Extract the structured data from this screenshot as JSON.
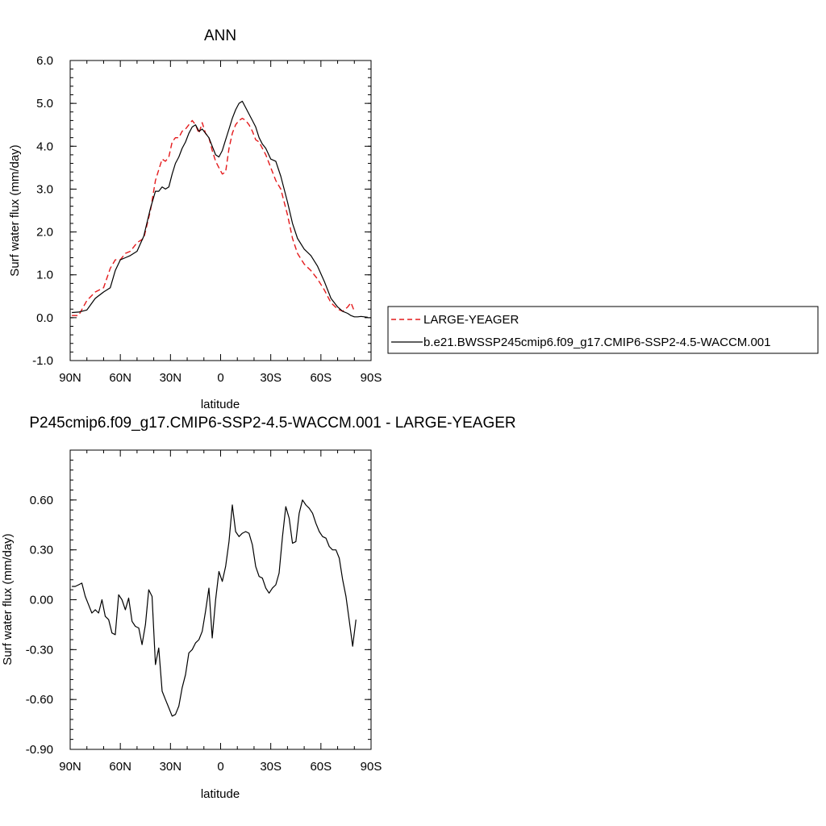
{
  "chart_data": [
    {
      "type": "line",
      "title": "ANN",
      "xlabel": "latitude",
      "ylabel": "Surf water flux (mm/day)",
      "xlim": [
        90,
        -90
      ],
      "ylim": [
        -1.0,
        6.0
      ],
      "x_tick_values": [
        90,
        60,
        30,
        0,
        -30,
        -60,
        -90
      ],
      "x_tick_labels": [
        "90N",
        "60N",
        "30N",
        "0",
        "30S",
        "60S",
        "90S"
      ],
      "y_tick_values": [
        -1.0,
        0.0,
        1.0,
        2.0,
        3.0,
        4.0,
        5.0,
        6.0
      ],
      "y_tick_labels": [
        "-1.0",
        "0.0",
        "1.0",
        "2.0",
        "3.0",
        "4.0",
        "5.0",
        "6.0"
      ],
      "legend_placement": "right, outside plot",
      "series": [
        {
          "name": "LARGE-YEAGER",
          "color": "#e41a1c",
          "dash": true,
          "x": [
            89,
            85,
            80,
            75,
            70,
            66,
            63,
            60,
            57,
            54,
            50,
            46,
            42,
            39,
            37,
            35,
            33,
            31,
            29,
            27,
            25,
            23,
            21,
            19,
            17,
            15,
            13,
            11,
            9,
            7,
            5,
            3,
            1,
            -1,
            -3,
            -5,
            -7,
            -9,
            -11,
            -13,
            -15,
            -17,
            -19,
            -21,
            -23,
            -25,
            -27,
            -30,
            -33,
            -36,
            -40,
            -43,
            -46,
            -50,
            -54,
            -58,
            -62,
            -66,
            -70,
            -73,
            -76,
            -78,
            -80
          ],
          "y": [
            0.05,
            0.05,
            0.4,
            0.6,
            0.7,
            1.15,
            1.35,
            1.35,
            1.5,
            1.55,
            1.75,
            1.85,
            2.5,
            3.2,
            3.45,
            3.7,
            3.65,
            3.75,
            4.1,
            4.2,
            4.2,
            4.35,
            4.4,
            4.5,
            4.6,
            4.5,
            4.3,
            4.55,
            4.3,
            4.2,
            3.9,
            3.65,
            3.5,
            3.35,
            3.4,
            3.95,
            4.3,
            4.5,
            4.6,
            4.65,
            4.6,
            4.5,
            4.35,
            4.15,
            4.1,
            3.95,
            3.8,
            3.5,
            3.2,
            3.0,
            2.4,
            1.85,
            1.5,
            1.25,
            1.1,
            0.9,
            0.65,
            0.35,
            0.2,
            0.15,
            0.25,
            0.35,
            0.15
          ]
        },
        {
          "name": "b.e21.BWSSP245cmip6.f09_g17.CMIP6-SSP2-4.5-WACCM.001",
          "color": "#000000",
          "dash": false,
          "x": [
            89,
            85,
            80,
            75,
            70,
            66,
            63,
            60,
            57,
            54,
            50,
            46,
            42,
            39,
            37,
            35,
            33,
            31,
            29,
            27,
            25,
            23,
            21,
            19,
            17,
            15,
            13,
            11,
            9,
            7,
            5,
            3,
            1,
            -1,
            -3,
            -5,
            -7,
            -9,
            -11,
            -13,
            -15,
            -17,
            -19,
            -21,
            -23,
            -25,
            -27,
            -30,
            -33,
            -36,
            -40,
            -43,
            -46,
            -50,
            -54,
            -58,
            -62,
            -66,
            -70,
            -73,
            -76,
            -78,
            -80,
            -82,
            -84,
            -86,
            -88
          ],
          "y": [
            0.12,
            0.13,
            0.18,
            0.45,
            0.6,
            0.7,
            1.1,
            1.35,
            1.4,
            1.45,
            1.55,
            1.9,
            2.55,
            2.95,
            2.95,
            3.05,
            3.0,
            3.05,
            3.35,
            3.6,
            3.75,
            3.95,
            4.1,
            4.3,
            4.45,
            4.5,
            4.35,
            4.4,
            4.3,
            4.2,
            4.0,
            3.8,
            3.75,
            3.9,
            4.15,
            4.4,
            4.65,
            4.85,
            5.0,
            5.05,
            4.9,
            4.75,
            4.6,
            4.45,
            4.2,
            4.05,
            3.95,
            3.7,
            3.65,
            3.3,
            2.7,
            2.2,
            1.85,
            1.6,
            1.45,
            1.2,
            0.85,
            0.45,
            0.25,
            0.15,
            0.1,
            0.05,
            0.02,
            0.02,
            0.03,
            0.02,
            0.01
          ]
        }
      ]
    },
    {
      "type": "line",
      "title": "P245cmip6.f09_g17.CMIP6-SSP2-4.5-WACCM.001 - LARGE-YEAGER",
      "xlabel": "latitude",
      "ylabel": "Surf water flux (mm/day)",
      "xlim": [
        90,
        -90
      ],
      "ylim": [
        -0.9,
        0.9
      ],
      "x_tick_values": [
        90,
        60,
        30,
        0,
        -30,
        -60,
        -90
      ],
      "x_tick_labels": [
        "90N",
        "60N",
        "30N",
        "0",
        "30S",
        "60S",
        "90S"
      ],
      "y_tick_values": [
        -0.9,
        -0.6,
        -0.3,
        0.0,
        0.3,
        0.6
      ],
      "y_tick_labels": [
        "-0.90",
        "-0.60",
        "-0.30",
        "0.00",
        "0.30",
        "0.60"
      ],
      "series": [
        {
          "color": "#000000",
          "dash": false,
          "x": [
            89,
            87,
            85,
            83,
            81,
            79,
            77,
            75,
            73,
            71,
            69,
            67,
            65,
            63,
            61,
            59,
            57,
            55,
            53,
            51,
            49,
            47,
            45,
            43,
            41,
            39,
            37,
            35,
            33,
            31,
            29,
            27,
            25,
            23,
            21,
            19,
            17,
            15,
            13,
            11,
            9,
            7,
            5,
            3,
            1,
            -1,
            -3,
            -5,
            -7,
            -9,
            -11,
            -13,
            -15,
            -17,
            -19,
            -21,
            -23,
            -25,
            -27,
            -29,
            -31,
            -33,
            -35,
            -37,
            -39,
            -41,
            -43,
            -45,
            -47,
            -49,
            -51,
            -53,
            -55,
            -57,
            -59,
            -61,
            -63,
            -65,
            -67,
            -69,
            -71,
            -73,
            -75,
            -77,
            -79,
            -81
          ],
          "y": [
            0.08,
            0.08,
            0.09,
            0.1,
            0.02,
            -0.03,
            -0.08,
            -0.06,
            -0.08,
            0.0,
            -0.1,
            -0.12,
            -0.2,
            -0.21,
            0.03,
            0.0,
            -0.06,
            0.01,
            -0.13,
            -0.16,
            -0.17,
            -0.27,
            -0.15,
            0.06,
            0.02,
            -0.39,
            -0.29,
            -0.55,
            -0.6,
            -0.65,
            -0.7,
            -0.69,
            -0.64,
            -0.53,
            -0.45,
            -0.32,
            -0.3,
            -0.26,
            -0.24,
            -0.19,
            -0.07,
            0.07,
            -0.23,
            0.0,
            0.17,
            0.11,
            0.2,
            0.35,
            0.57,
            0.41,
            0.38,
            0.4,
            0.41,
            0.4,
            0.33,
            0.2,
            0.14,
            0.13,
            0.07,
            0.04,
            0.07,
            0.09,
            0.16,
            0.38,
            0.56,
            0.49,
            0.34,
            0.35,
            0.52,
            0.6,
            0.57,
            0.55,
            0.52,
            0.46,
            0.41,
            0.38,
            0.37,
            0.32,
            0.3,
            0.3,
            0.25,
            0.12,
            0.02,
            -0.13,
            -0.28,
            -0.12
          ]
        }
      ]
    }
  ]
}
